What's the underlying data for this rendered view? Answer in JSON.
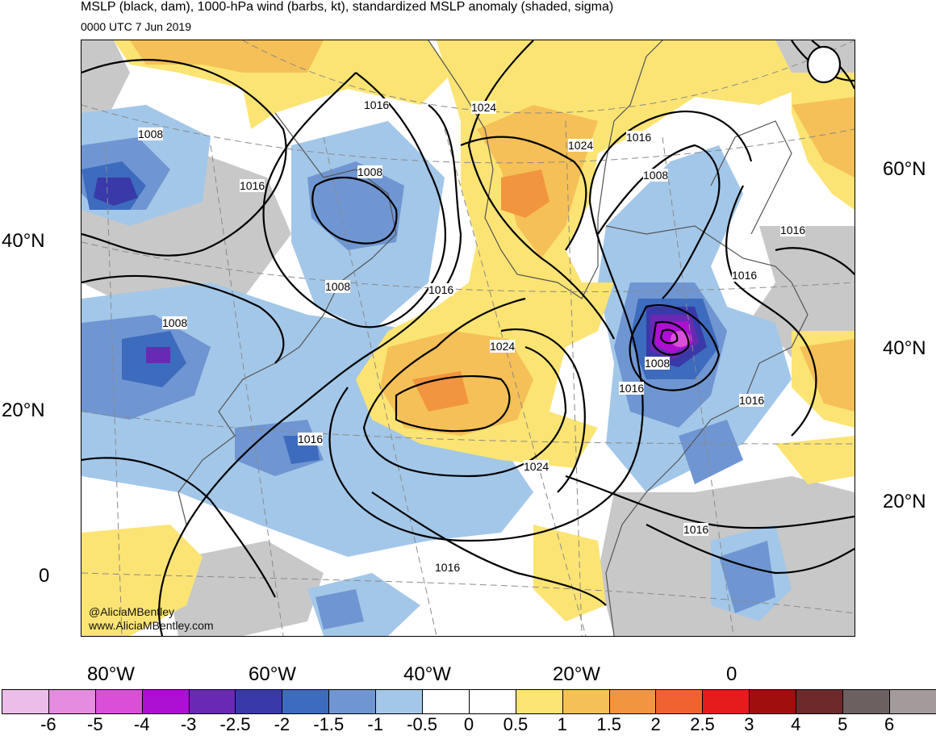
{
  "title": "MSLP (black, dam), 1000-hPa wind (barbs, kt), standardized MSLP anomaly (shaded, sigma)",
  "subtitle": "0000 UTC 7 Jun 2019",
  "credits": [
    "@AliciaMBentley",
    "www.AliciaMBentley.com"
  ],
  "lat_labels_left": [
    "40°N",
    "20°N",
    "0"
  ],
  "lat_labels_right": [
    "60°N",
    "40°N",
    "20°N"
  ],
  "lon_labels": [
    "80°W",
    "60°W",
    "40°W",
    "20°W",
    "0"
  ],
  "isobar_labels": [
    "1008",
    "1016",
    "1016",
    "1024",
    "1024",
    "1016",
    "1008",
    "1008",
    "1016",
    "1008",
    "1016",
    "1024",
    "1024",
    "1016",
    "1008",
    "1016",
    "1016",
    "1016",
    "1008",
    "1016",
    "1016"
  ],
  "colorbar": {
    "colors": [
      "#ebbde8",
      "#e58be0",
      "#d94fd8",
      "#ad10d2",
      "#6a29b3",
      "#3a39a9",
      "#3d6bbd",
      "#6f96d2",
      "#a3c7e8",
      "#ffffff",
      "#ffffff",
      "#fbe474",
      "#f5c057",
      "#f2953f",
      "#f06330",
      "#e61b1b",
      "#a10e0e",
      "#6e2a2a",
      "#6d6060",
      "#a39b9b"
    ],
    "labels": [
      "-6",
      "-5",
      "-4",
      "-3",
      "-2.5",
      "-2",
      "-1.5",
      "-1",
      "-0.5",
      "0",
      "0.5",
      "1",
      "1.5",
      "2",
      "2.5",
      "3",
      "4",
      "5",
      "6"
    ]
  }
}
